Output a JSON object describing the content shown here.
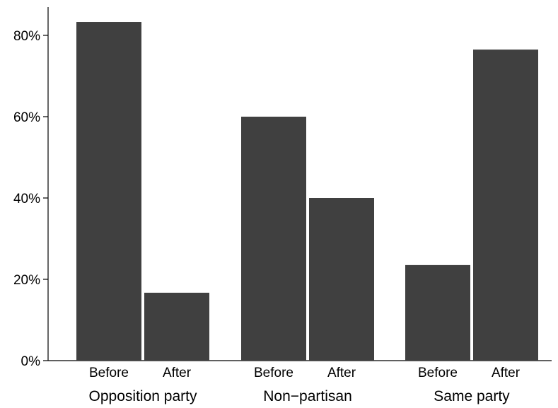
{
  "chart_data": {
    "type": "bar",
    "title": "",
    "xlabel": "",
    "ylabel": "",
    "ylim": [
      0,
      87
    ],
    "y_ticks": [
      0,
      20,
      40,
      60,
      80
    ],
    "y_tick_labels": [
      "0%",
      "20%",
      "40%",
      "60%",
      "80%"
    ],
    "groups": [
      {
        "label": "Opposition party",
        "bars": [
          {
            "category": "Before",
            "value": 83.3
          },
          {
            "category": "After",
            "value": 16.7
          }
        ]
      },
      {
        "label": "Non−partisan",
        "bars": [
          {
            "category": "Before",
            "value": 60.0
          },
          {
            "category": "After",
            "value": 40.0
          }
        ]
      },
      {
        "label": "Same party",
        "bars": [
          {
            "category": "Before",
            "value": 23.5
          },
          {
            "category": "After",
            "value": 76.5
          }
        ]
      }
    ],
    "bar_color": "#404040",
    "grid": false,
    "legend": "none"
  }
}
